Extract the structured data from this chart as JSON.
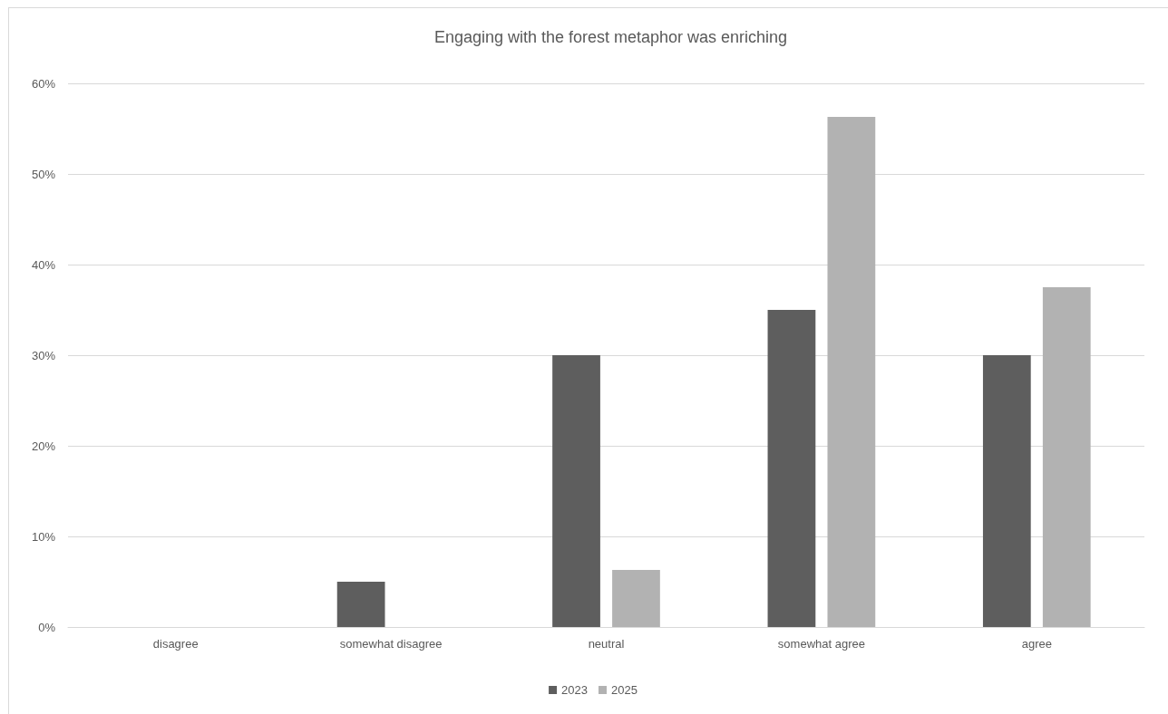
{
  "chart_data": {
    "type": "bar",
    "title": "Engaging with the forest metaphor was enriching",
    "categories": [
      "disagree",
      "somewhat disagree",
      "neutral",
      "somewhat agree",
      "agree"
    ],
    "series": [
      {
        "name": "2023",
        "color": "#5e5e5e",
        "values": [
          0,
          5,
          30,
          35,
          30
        ]
      },
      {
        "name": "2025",
        "color": "#b2b2b2",
        "values": [
          0,
          0,
          6.3,
          56.3,
          37.5
        ]
      }
    ],
    "ylim": [
      0,
      60
    ],
    "yticks": [
      {
        "value": 0,
        "label": "0%"
      },
      {
        "value": 10,
        "label": "10%"
      },
      {
        "value": 20,
        "label": "20%"
      },
      {
        "value": 30,
        "label": "30%"
      },
      {
        "value": 40,
        "label": "40%"
      },
      {
        "value": 50,
        "label": "50%"
      },
      {
        "value": 60,
        "label": "60%"
      }
    ],
    "grid": "y",
    "legend": "bottom"
  }
}
